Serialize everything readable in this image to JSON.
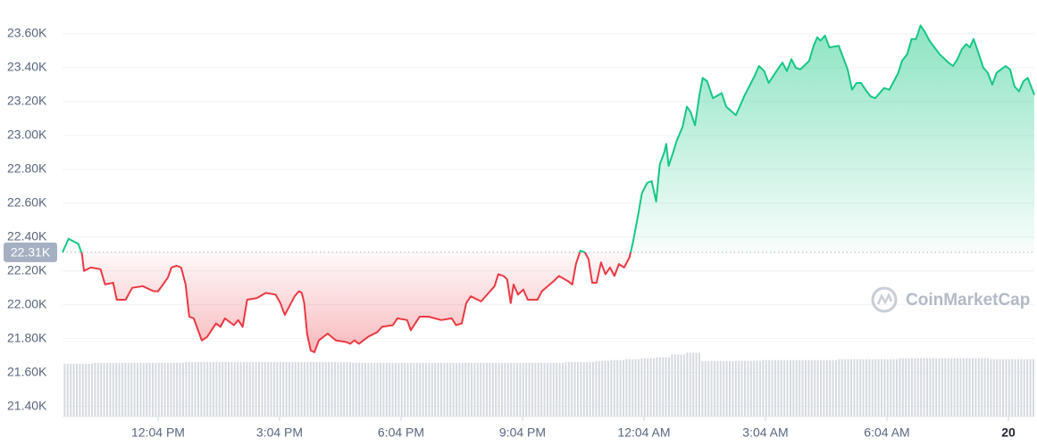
{
  "chart_data": {
    "type": "line",
    "watermark": "CoinMarketCap",
    "baseline": {
      "value": 22.31,
      "label": "22.31K"
    },
    "up_color": "#16c784",
    "down_color": "#ea3943",
    "grid": true,
    "xlim": [
      9.71,
      33.71
    ],
    "ylim": [
      21.34,
      23.8
    ],
    "xticks": [
      {
        "value": 12.07,
        "label": "12:04 PM"
      },
      {
        "value": 15.07,
        "label": "3:04 PM"
      },
      {
        "value": 18.07,
        "label": "6:04 PM"
      },
      {
        "value": 21.07,
        "label": "9:04 PM"
      },
      {
        "value": 24.07,
        "label": "12:04 AM"
      },
      {
        "value": 27.07,
        "label": "3:04 AM"
      },
      {
        "value": 30.07,
        "label": "6:04 AM"
      },
      {
        "value": 33.07,
        "label": "20"
      }
    ],
    "yticks": [
      {
        "value": 21.4,
        "label": "21.40K"
      },
      {
        "value": 21.6,
        "label": "21.60K"
      },
      {
        "value": 21.8,
        "label": "21.80K"
      },
      {
        "value": 22,
        "label": "22.00K"
      },
      {
        "value": 22.2,
        "label": "22.20K"
      },
      {
        "value": 22.4,
        "label": "22.40K"
      },
      {
        "value": 22.6,
        "label": "22.60K"
      },
      {
        "value": 22.8,
        "label": "22.80K"
      },
      {
        "value": 23,
        "label": "23.00K"
      },
      {
        "value": 23.2,
        "label": "23.20K"
      },
      {
        "value": 23.4,
        "label": "23.40K"
      },
      {
        "value": 23.6,
        "label": "23.60K"
      }
    ],
    "x": [
      9.71,
      9.86,
      10.1,
      10.19,
      10.24,
      10.41,
      10.65,
      10.76,
      10.96,
      11.05,
      11.27,
      11.43,
      11.69,
      11.96,
      12.07,
      12.31,
      12.4,
      12.53,
      12.64,
      12.75,
      12.84,
      12.95,
      13.15,
      13.28,
      13.5,
      13.61,
      13.72,
      13.94,
      14.05,
      14.16,
      14.27,
      14.51,
      14.73,
      14.97,
      15.09,
      15.2,
      15.44,
      15.55,
      15.62,
      15.68,
      15.75,
      15.84,
      15.93,
      16.04,
      16.26,
      16.46,
      16.72,
      16.81,
      16.92,
      17.03,
      17.25,
      17.49,
      17.6,
      17.87,
      17.98,
      18.22,
      18.31,
      18.53,
      18.75,
      19.06,
      19.32,
      19.43,
      19.57,
      19.68,
      19.79,
      20.05,
      20.27,
      20.38,
      20.47,
      20.6,
      20.69,
      20.78,
      20.85,
      20.96,
      21.09,
      21.2,
      21.44,
      21.55,
      21.84,
      21.97,
      22.19,
      22.3,
      22.39,
      22.5,
      22.61,
      22.7,
      22.79,
      22.9,
      23.01,
      23.12,
      23.23,
      23.34,
      23.45,
      23.58,
      23.71,
      23.8,
      23.91,
      24.02,
      24.15,
      24.26,
      24.37,
      24.46,
      24.57,
      24.62,
      24.68,
      24.79,
      24.88,
      25.02,
      25.13,
      25.22,
      25.33,
      25.44,
      25.52,
      25.63,
      25.77,
      25.99,
      26.1,
      26.34,
      26.45,
      26.56,
      26.69,
      26.8,
      26.91,
      27.04,
      27.15,
      27.26,
      27.37,
      27.49,
      27.6,
      27.71,
      27.82,
      27.93,
      28.15,
      28.26,
      28.35,
      28.43,
      28.54,
      28.65,
      28.88,
      28.99,
      29.1,
      29.21,
      29.32,
      29.43,
      29.54,
      29.67,
      29.78,
      30.0,
      30.13,
      30.24,
      30.35,
      30.44,
      30.57,
      30.68,
      30.79,
      30.9,
      31.01,
      31.12,
      31.37,
      31.59,
      31.7,
      31.81,
      31.92,
      32.03,
      32.12,
      32.21,
      32.34,
      32.45,
      32.56,
      32.67,
      32.78,
      33.0,
      33.11,
      33.22,
      33.33,
      33.44,
      33.55,
      33.71
    ],
    "values": [
      22.31,
      22.39,
      22.36,
      22.3,
      22.2,
      22.22,
      22.21,
      22.12,
      22.13,
      22.03,
      22.03,
      22.1,
      22.11,
      22.08,
      22.08,
      22.16,
      22.22,
      22.23,
      22.22,
      22.12,
      21.93,
      21.92,
      21.79,
      21.81,
      21.89,
      21.87,
      21.92,
      21.88,
      21.91,
      21.87,
      22.03,
      22.04,
      22.07,
      22.06,
      22.01,
      21.94,
      22.05,
      22.08,
      22.07,
      22.01,
      21.83,
      21.73,
      21.72,
      21.79,
      21.83,
      21.79,
      21.78,
      21.77,
      21.79,
      21.77,
      21.81,
      21.84,
      21.87,
      21.88,
      21.92,
      21.91,
      21.85,
      21.93,
      21.93,
      21.91,
      21.92,
      21.88,
      21.89,
      22.01,
      22.05,
      22.02,
      22.08,
      22.11,
      22.18,
      22.17,
      22.15,
      22.01,
      22.12,
      22.06,
      22.09,
      22.03,
      22.03,
      22.08,
      22.14,
      22.17,
      22.14,
      22.12,
      22.24,
      22.32,
      22.31,
      22.27,
      22.13,
      22.13,
      22.25,
      22.18,
      22.22,
      22.17,
      22.24,
      22.22,
      22.28,
      22.37,
      22.51,
      22.66,
      22.72,
      22.73,
      22.61,
      22.83,
      22.9,
      22.95,
      22.82,
      22.9,
      22.97,
      23.05,
      23.17,
      23.14,
      23.06,
      23.24,
      23.34,
      23.32,
      23.22,
      23.25,
      23.17,
      23.12,
      23.18,
      23.24,
      23.3,
      23.35,
      23.41,
      23.38,
      23.31,
      23.35,
      23.39,
      23.43,
      23.38,
      23.45,
      23.4,
      23.39,
      23.44,
      23.53,
      23.58,
      23.56,
      23.59,
      23.52,
      23.53,
      23.46,
      23.39,
      23.27,
      23.31,
      23.31,
      23.27,
      23.23,
      23.22,
      23.28,
      23.27,
      23.32,
      23.37,
      23.44,
      23.48,
      23.57,
      23.57,
      23.65,
      23.61,
      23.56,
      23.48,
      23.43,
      23.41,
      23.45,
      23.51,
      23.54,
      23.52,
      23.57,
      23.48,
      23.4,
      23.37,
      23.3,
      23.37,
      23.41,
      23.39,
      23.29,
      23.26,
      23.32,
      23.34,
      23.24
    ],
    "volume": {
      "color": "#cfd4dc",
      "ylim": [
        0,
        450
      ],
      "values": [
        57,
        57,
        58,
        58,
        58,
        58,
        58,
        58,
        59,
        59,
        59,
        59,
        59,
        59,
        59,
        59,
        59,
        59,
        59,
        58,
        58,
        58,
        58,
        58,
        58,
        58,
        58,
        58,
        58,
        58,
        58,
        58,
        58,
        59,
        59,
        60,
        61,
        62,
        63,
        64,
        67,
        69,
        60,
        60,
        60,
        60,
        61,
        61,
        61,
        61,
        61,
        62,
        62,
        62,
        62,
        63,
        63,
        63,
        63,
        63,
        63,
        62,
        62,
        62
      ]
    }
  }
}
